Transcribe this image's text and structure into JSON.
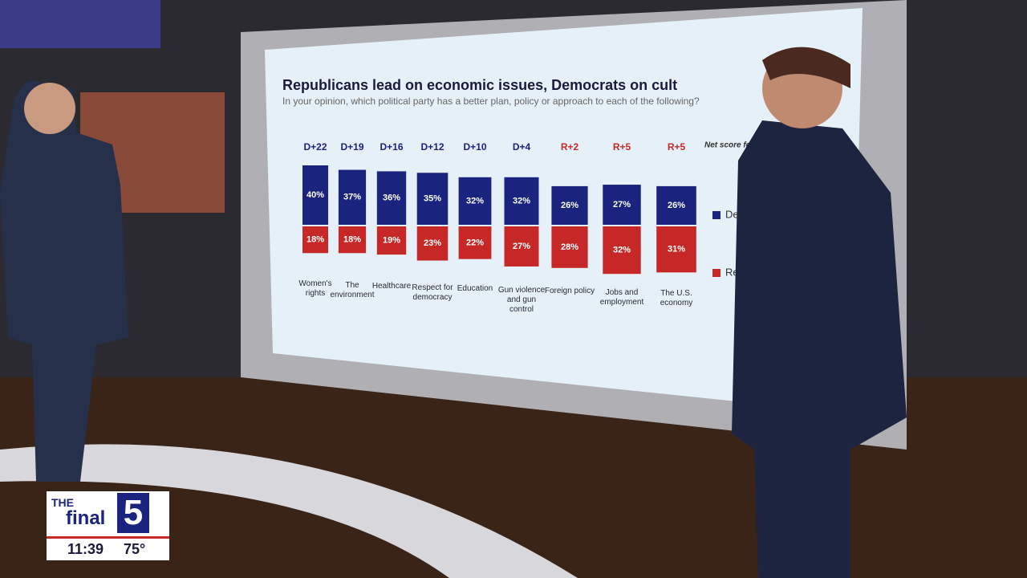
{
  "chart_data": {
    "type": "diverging_bar",
    "title": "Republicans lead on economic issues, Democrats on cult",
    "subtitle": "In your opinion, which political party has a better plan, policy or approach to each of the following?",
    "annotation_header": "Net score for Aug",
    "annotations": [
      "D+22",
      "D+19",
      "D+16",
      "D+12",
      "D+10",
      "D+4",
      "R+2",
      "R+5",
      "R+5"
    ],
    "categories": [
      "Women's rights",
      "The environment",
      "Healthcare",
      "Respect for democracy",
      "Education",
      "Gun violence and gun control",
      "Foreign policy",
      "Jobs and employment",
      "The U.S. economy"
    ],
    "series": [
      {
        "name": "Democ",
        "color": "#1a237e",
        "direction": "up",
        "values": [
          40,
          37,
          36,
          35,
          32,
          32,
          26,
          27,
          26
        ],
        "value_labels": [
          "40%",
          "37%",
          "36%",
          "35%",
          "32%",
          "32%",
          "26%",
          "27%",
          "26%"
        ]
      },
      {
        "name": "Repu",
        "color": "#c62828",
        "direction": "down",
        "values": [
          18,
          18,
          19,
          23,
          22,
          27,
          28,
          32,
          31
        ],
        "value_labels": [
          "18%",
          "18%",
          "19%",
          "23%",
          "22%",
          "27%",
          "28%",
          "32%",
          "31%"
        ]
      }
    ]
  },
  "overlay": {
    "brand_top": "THE",
    "brand_word": "final",
    "brand_number": "5",
    "time": "11:39",
    "temperature": "75°"
  }
}
